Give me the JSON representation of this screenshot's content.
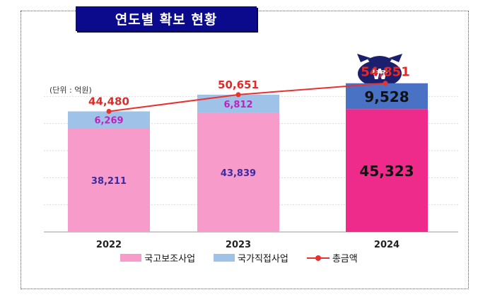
{
  "title": "연도별 확보 현황",
  "unit_label": "(단위 : 억원)",
  "legend": [
    {
      "label": "국고보조사업",
      "color": "#f79bca"
    },
    {
      "label": "국가직접사업",
      "color": "#9fc3e8"
    },
    {
      "label": "총금액",
      "color": "#e8322f"
    }
  ],
  "chart_data": {
    "type": "bar",
    "stacked": true,
    "categories": [
      "2022",
      "2023",
      "2024"
    ],
    "ylim": [
      0,
      60000
    ],
    "grid": true,
    "legend_position": "bottom",
    "series": [
      {
        "name": "국고보조사업",
        "values": [
          38211,
          43839,
          45323
        ],
        "colors": [
          "#f79bca",
          "#f79bca",
          "#ee2a8a"
        ],
        "labels": [
          "38,211",
          "43,839",
          "45,323"
        ],
        "label_colors": [
          "#3c2aa0",
          "#3c2aa0",
          "#111111"
        ]
      },
      {
        "name": "국가직접사업",
        "values": [
          6269,
          6812,
          9528
        ],
        "colors": [
          "#9fc3e8",
          "#9fc3e8",
          "#4a72c4"
        ],
        "labels": [
          "6,269",
          "6,812",
          "9,528"
        ],
        "label_colors": [
          "#c020c0",
          "#c020c0",
          "#111111"
        ]
      }
    ],
    "line": {
      "name": "총금액",
      "values": [
        44480,
        50651,
        54851
      ],
      "labels": [
        "44,480",
        "50,651",
        "54,851"
      ],
      "color": "#e8322f"
    }
  }
}
